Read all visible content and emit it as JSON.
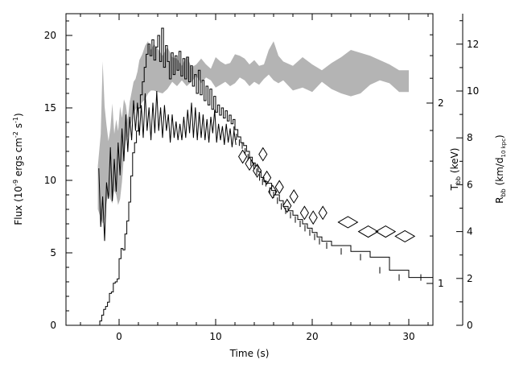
{
  "chart_data": {
    "type": "line",
    "xlabel": "Time (s)",
    "ylabel": "Flux (10",
    "ylabel_exp1": "-9",
    "ylabel_mid": " ergs cm",
    "ylabel_exp2": "-2",
    "ylabel_mid2": " s",
    "ylabel_exp3": "-1",
    "ylabel_end": ")",
    "xlim": [
      -5.5,
      32.5
    ],
    "ylim": [
      0,
      21.5
    ],
    "x_ticks": [
      0,
      10,
      20,
      30
    ],
    "y_ticks": [
      0,
      5,
      10,
      15,
      20
    ],
    "tbb_axis": {
      "label": "T",
      "label_sub": "bb",
      "label_end": " (keV)",
      "log": true,
      "major_ticks": [
        1,
        2
      ],
      "minor_ticks": [
        1.2,
        1.4,
        1.6,
        1.8,
        2.2,
        2.4,
        2.6
      ]
    },
    "rbb_axis": {
      "label": "R",
      "label_sub": "bb",
      "label_mid": " (km/d",
      "label_sub2": "10 kpc",
      "label_end": ")",
      "ylim": [
        0,
        13.3
      ],
      "ticks": [
        0,
        2,
        4,
        6,
        8,
        10,
        12
      ]
    },
    "flux_steps": [
      [
        -2.4,
        0.0
      ],
      [
        -2.0,
        0.3
      ],
      [
        -1.8,
        0.7
      ],
      [
        -1.6,
        1.1
      ],
      [
        -1.4,
        1.3
      ],
      [
        -1.2,
        1.6
      ],
      [
        -1.0,
        2.2
      ],
      [
        -0.8,
        2.3
      ],
      [
        -0.6,
        2.9
      ],
      [
        -0.4,
        3.0
      ],
      [
        -0.2,
        3.2
      ],
      [
        0.0,
        4.6
      ],
      [
        0.2,
        5.3
      ],
      [
        0.4,
        5.2
      ],
      [
        0.6,
        6.3
      ],
      [
        0.8,
        7.2
      ],
      [
        1.0,
        8.5
      ],
      [
        1.2,
        10.3
      ],
      [
        1.4,
        11.9
      ],
      [
        1.6,
        12.6
      ],
      [
        1.8,
        13.4
      ],
      [
        2.0,
        15.0
      ],
      [
        2.2,
        15.9
      ],
      [
        2.4,
        16.8
      ],
      [
        2.6,
        17.8
      ],
      [
        2.8,
        18.7
      ],
      [
        3.0,
        19.4
      ],
      [
        3.2,
        18.6
      ],
      [
        3.4,
        19.7
      ],
      [
        3.6,
        18.3
      ],
      [
        3.8,
        19.2
      ],
      [
        4.0,
        20.0
      ],
      [
        4.2,
        18.2
      ],
      [
        4.4,
        20.5
      ],
      [
        4.6,
        17.8
      ],
      [
        4.8,
        19.3
      ],
      [
        5.0,
        18.2
      ],
      [
        5.2,
        17.0
      ],
      [
        5.4,
        18.8
      ],
      [
        5.6,
        17.3
      ],
      [
        5.8,
        18.6
      ],
      [
        6.0,
        17.6
      ],
      [
        6.2,
        18.9
      ],
      [
        6.4,
        17.2
      ],
      [
        6.6,
        18.4
      ],
      [
        6.8,
        17.0
      ],
      [
        7.0,
        18.5
      ],
      [
        7.2,
        16.8
      ],
      [
        7.4,
        17.9
      ],
      [
        7.6,
        16.5
      ],
      [
        7.8,
        17.3
      ],
      [
        8.0,
        16.0
      ],
      [
        8.2,
        17.6
      ],
      [
        8.4,
        15.9
      ],
      [
        8.6,
        16.9
      ],
      [
        8.8,
        15.5
      ],
      [
        9.0,
        16.5
      ],
      [
        9.2,
        15.2
      ],
      [
        9.4,
        16.3
      ],
      [
        9.6,
        14.9
      ],
      [
        9.8,
        15.8
      ],
      [
        10.0,
        14.7
      ],
      [
        10.2,
        15.2
      ],
      [
        10.4,
        14.5
      ],
      [
        10.6,
        15.0
      ],
      [
        10.8,
        14.3
      ],
      [
        11.0,
        14.8
      ],
      [
        11.2,
        14.1
      ],
      [
        11.4,
        14.5
      ],
      [
        11.6,
        13.9
      ],
      [
        11.8,
        14.2
      ],
      [
        12.0,
        13.5
      ],
      [
        12.3,
        13.0
      ],
      [
        12.6,
        12.6
      ],
      [
        12.9,
        12.4
      ],
      [
        13.2,
        12.0
      ],
      [
        13.5,
        11.6
      ],
      [
        13.8,
        11.2
      ],
      [
        14.1,
        11.0
      ],
      [
        14.4,
        10.6
      ],
      [
        14.7,
        10.2
      ],
      [
        15.0,
        9.9
      ],
      [
        15.4,
        9.8
      ],
      [
        15.8,
        9.3
      ],
      [
        16.2,
        9.0
      ],
      [
        16.6,
        8.6
      ],
      [
        17.0,
        8.2
      ],
      [
        17.5,
        7.9
      ],
      [
        18.0,
        7.6
      ],
      [
        18.5,
        7.3
      ],
      [
        19.0,
        7.0
      ],
      [
        19.5,
        6.7
      ],
      [
        20.0,
        6.4
      ],
      [
        20.5,
        6.1
      ],
      [
        21.0,
        5.8
      ],
      [
        22.0,
        5.5
      ],
      [
        24.0,
        5.1
      ],
      [
        26.0,
        4.7
      ],
      [
        28.0,
        3.8
      ],
      [
        30.0,
        3.3
      ],
      [
        32.5,
        3.3
      ]
    ],
    "temperature_band": {
      "x": [
        -2.2,
        -1.9,
        -1.7,
        -1.5,
        -1.3,
        -1.1,
        -0.9,
        -0.7,
        -0.5,
        -0.3,
        -0.1,
        0.1,
        0.3,
        0.5,
        0.7,
        0.9,
        1.1,
        1.3,
        1.5,
        1.7,
        1.9,
        2.1,
        2.4,
        2.7,
        3.0,
        3.3,
        3.6,
        4.0,
        4.5,
        5.0,
        5.5,
        6.0,
        6.5,
        7.0,
        7.5,
        8.0,
        8.5,
        9.0,
        9.5,
        10.0,
        10.5,
        11.0,
        11.5,
        12.0,
        12.5,
        13.0,
        13.5,
        14.0,
        14.5,
        15.0,
        15.5,
        16.0,
        16.5,
        17.0,
        18.0,
        19.0,
        20.0,
        21.0,
        22.0,
        23.0,
        24.0,
        25.0,
        26.0,
        27.0,
        28.0,
        29.0,
        30.0
      ],
      "upper": [
        11.0,
        13.2,
        18.2,
        15.1,
        13.8,
        12.7,
        13.6,
        15.3,
        13.2,
        14.2,
        13.4,
        15.1,
        14.3,
        15.6,
        15.2,
        14.2,
        15.4,
        16.1,
        16.8,
        17.0,
        17.5,
        18.3,
        18.7,
        19.3,
        19.6,
        19.0,
        19.4,
        19.1,
        18.6,
        19.2,
        18.5,
        18.4,
        17.9,
        18.6,
        17.8,
        18.0,
        18.4,
        18.0,
        17.7,
        18.5,
        18.2,
        18.0,
        18.1,
        18.7,
        18.6,
        18.4,
        18.0,
        18.3,
        17.9,
        18.0,
        19.0,
        19.6,
        18.6,
        18.2,
        17.9,
        18.5,
        18.0,
        17.6,
        18.1,
        18.5,
        19.0,
        18.8,
        18.6,
        18.3,
        18.0,
        17.6,
        17.6
      ],
      "lower": [
        8.0,
        7.4,
        7.0,
        7.3,
        8.5,
        9.1,
        8.7,
        8.4,
        9.3,
        9.0,
        8.3,
        8.7,
        9.9,
        11.7,
        12.7,
        13.0,
        13.6,
        14.1,
        14.6,
        14.9,
        15.1,
        15.0,
        15.4,
        15.6,
        16.0,
        16.2,
        16.2,
        16.1,
        16.0,
        16.3,
        16.8,
        16.5,
        16.9,
        16.5,
        16.8,
        17.2,
        16.7,
        17.1,
        16.9,
        16.4,
        16.6,
        16.8,
        16.5,
        16.7,
        17.1,
        16.9,
        16.5,
        16.8,
        16.6,
        17.0,
        17.3,
        16.9,
        16.7,
        16.9,
        16.2,
        16.4,
        16.1,
        16.8,
        16.3,
        16.0,
        15.8,
        16.0,
        16.6,
        16.9,
        16.7,
        16.1,
        16.1
      ]
    },
    "radius_zigzag": {
      "x": [
        -2.1,
        -1.9,
        -1.7,
        -1.5,
        -1.3,
        -1.1,
        -0.9,
        -0.7,
        -0.5,
        -0.3,
        -0.1,
        0.1,
        0.3,
        0.5,
        0.7,
        0.9,
        1.1,
        1.3,
        1.5,
        1.7,
        1.9,
        2.1,
        2.3,
        2.5,
        2.7,
        2.9,
        3.1,
        3.3,
        3.5,
        3.7,
        3.9,
        4.1,
        4.3,
        4.5,
        4.7,
        4.9,
        5.1,
        5.3,
        5.5,
        5.7,
        5.9,
        6.1,
        6.3,
        6.5,
        6.7,
        6.9,
        7.1,
        7.3,
        7.5,
        7.7,
        7.9,
        8.1,
        8.3,
        8.5,
        8.7,
        8.9,
        9.1,
        9.3,
        9.5,
        9.7,
        9.9,
        10.1,
        10.3,
        10.5,
        10.7,
        10.9,
        11.1,
        11.3,
        11.5,
        11.7,
        11.9,
        12.1
      ],
      "y": [
        6.7,
        4.2,
        5.5,
        3.6,
        6.1,
        5.4,
        7.6,
        5.3,
        7.1,
        5.7,
        7.8,
        6.4,
        8.4,
        7.0,
        9.0,
        7.4,
        8.9,
        7.9,
        9.6,
        8.3,
        9.5,
        8.1,
        9.4,
        8.0,
        9.9,
        8.3,
        9.3,
        7.9,
        9.5,
        8.2,
        10.0,
        8.3,
        9.3,
        8.0,
        9.4,
        8.3,
        9.0,
        7.8,
        9.0,
        8.0,
        8.7,
        7.9,
        8.6,
        7.9,
        8.9,
        8.0,
        9.2,
        8.2,
        9.5,
        8.0,
        9.3,
        7.9,
        9.1,
        8.0,
        9.0,
        7.9,
        8.8,
        7.8,
        8.9,
        8.2,
        9.2,
        7.8,
        8.6,
        7.9,
        8.5,
        7.7,
        8.6,
        7.8,
        8.4,
        7.6,
        8.3,
        7.7
      ]
    },
    "radius_diamonds": [
      {
        "x": 12.8,
        "y": 7.2
      },
      {
        "x": 13.5,
        "y": 6.9
      },
      {
        "x": 14.3,
        "y": 6.6
      },
      {
        "x": 14.9,
        "y": 7.3
      },
      {
        "x": 15.3,
        "y": 6.3
      },
      {
        "x": 15.9,
        "y": 5.7
      },
      {
        "x": 16.6,
        "y": 5.9
      },
      {
        "x": 17.4,
        "y": 5.1
      },
      {
        "x": 18.1,
        "y": 5.5
      },
      {
        "x": 19.2,
        "y": 4.8
      },
      {
        "x": 20.1,
        "y": 4.6
      },
      {
        "x": 21.1,
        "y": 4.8
      },
      {
        "x": 23.7,
        "y": 4.4
      },
      {
        "x": 25.8,
        "y": 4.0
      },
      {
        "x": 27.6,
        "y": 4.0
      },
      {
        "x": 29.6,
        "y": 3.8
      }
    ]
  }
}
